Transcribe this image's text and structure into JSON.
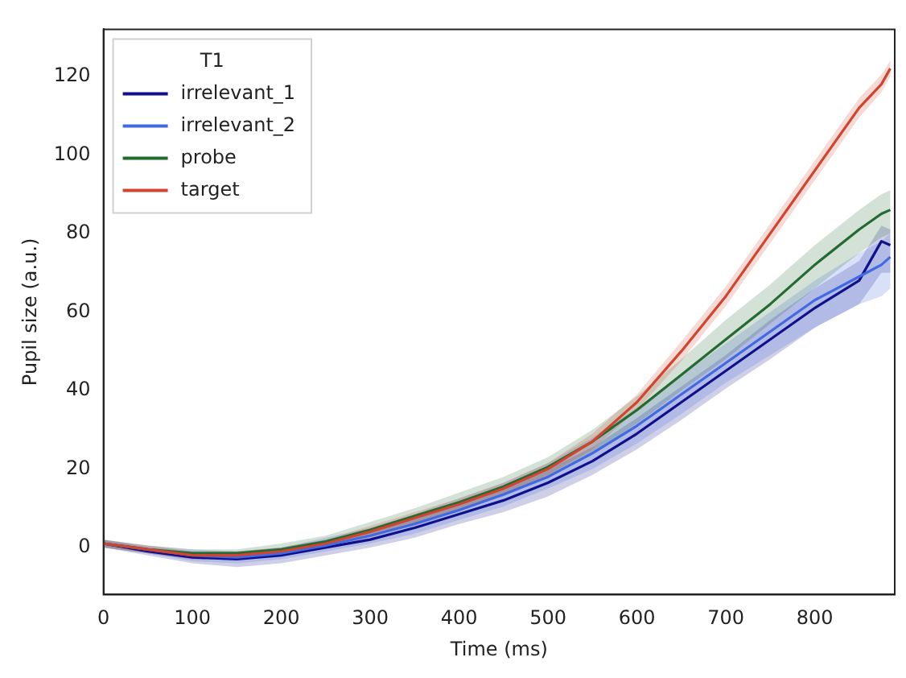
{
  "chart_data": {
    "type": "line",
    "xlabel": "Time (ms)",
    "ylabel": "Pupil size (a.u.)",
    "legend_title": "T1",
    "x": [
      0,
      50,
      100,
      150,
      200,
      250,
      300,
      350,
      400,
      450,
      500,
      550,
      600,
      650,
      700,
      750,
      800,
      850,
      875,
      885
    ],
    "series": [
      {
        "name": "irrelevant_1",
        "color": "#10108c",
        "values": [
          1,
          -1,
          -2.5,
          -3,
          -2,
          0,
          2,
          5,
          8.5,
          12,
          16.5,
          22,
          29,
          37,
          45,
          53,
          61,
          68,
          78,
          77
        ],
        "lower": [
          0,
          -2,
          -4,
          -5,
          -4,
          -2,
          0,
          2.5,
          6,
          9,
          13,
          18.5,
          25,
          32.5,
          40.5,
          48,
          56,
          62,
          70,
          70
        ],
        "upper": [
          2,
          0,
          -1,
          -1,
          0,
          2,
          4.5,
          7.5,
          11,
          15,
          20,
          25.5,
          33,
          41,
          49,
          58,
          66,
          73,
          82,
          81
        ]
      },
      {
        "name": "irrelevant_2",
        "color": "#4169e1",
        "values": [
          1,
          -0.5,
          -2,
          -2.5,
          -1.5,
          0.5,
          3,
          6,
          9.5,
          13.5,
          18,
          24,
          31,
          39,
          47,
          55,
          63,
          69,
          72,
          74
        ],
        "lower": [
          0,
          -1.5,
          -3.5,
          -4,
          -3,
          -1,
          1,
          3.5,
          7,
          10.5,
          15,
          20,
          26.5,
          34,
          42,
          49,
          56,
          62,
          64,
          66
        ],
        "upper": [
          2,
          0.5,
          -0.5,
          -1,
          0,
          2.5,
          5,
          8.5,
          12.5,
          16.5,
          21.5,
          28,
          35.5,
          44,
          52,
          60,
          68,
          75,
          78,
          80
        ]
      },
      {
        "name": "probe",
        "color": "#236b30",
        "values": [
          1,
          -0.5,
          -1.5,
          -1.5,
          -0.5,
          1.5,
          4.5,
          8,
          11.5,
          15.5,
          20.5,
          27,
          35,
          44,
          53,
          62,
          72,
          81,
          85,
          86
        ],
        "lower": [
          0,
          -1.5,
          -3,
          -3,
          -2,
          0,
          3,
          6,
          9.5,
          13,
          18,
          24,
          31.5,
          40,
          48,
          57,
          66,
          75,
          79,
          80
        ],
        "upper": [
          2,
          0.5,
          -0.5,
          -0.5,
          1,
          3,
          6.5,
          10,
          14,
          18,
          23,
          30,
          38.5,
          48,
          58,
          67,
          77,
          86,
          90,
          91
        ]
      },
      {
        "name": "target",
        "color": "#d0452f",
        "values": [
          1,
          -0.5,
          -2,
          -2,
          -1,
          1,
          4,
          7.5,
          11,
          15,
          20,
          27,
          37,
          50,
          64,
          80,
          96,
          112,
          118,
          122
        ],
        "lower": [
          0,
          -1.5,
          -3,
          -3,
          -2,
          0,
          2.5,
          6,
          9.5,
          13.5,
          18.5,
          25,
          35,
          47.5,
          61.5,
          77.5,
          93.5,
          109.5,
          116,
          120
        ],
        "upper": [
          2,
          0.5,
          -1,
          -1,
          0,
          2,
          5.5,
          9,
          12.5,
          16.5,
          21.5,
          29,
          39,
          52.5,
          66.5,
          82.5,
          98.5,
          114.5,
          120.5,
          124
        ]
      }
    ],
    "xlim": [
      0,
      890
    ],
    "ylim": [
      -12,
      132
    ],
    "xticks": [
      0,
      100,
      200,
      300,
      400,
      500,
      600,
      700,
      800
    ],
    "yticks": [
      0,
      20,
      40,
      60,
      80,
      100,
      120
    ],
    "grid": false,
    "legend": "top left",
    "marker": "none",
    "line_style": "solid"
  }
}
